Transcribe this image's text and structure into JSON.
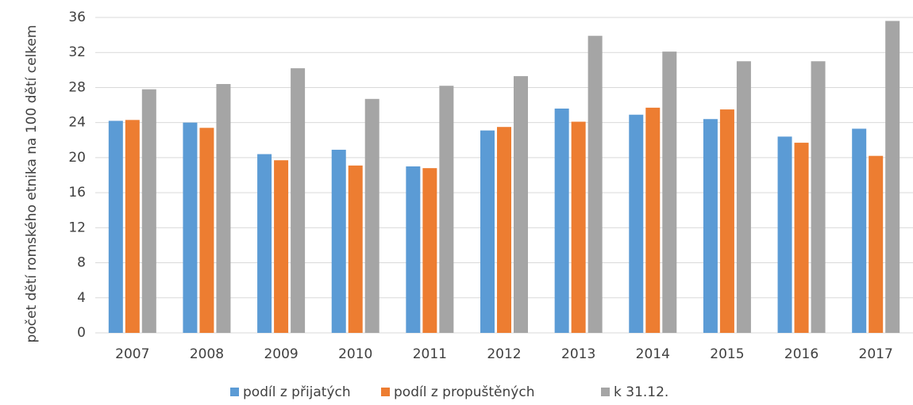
{
  "chart_data": {
    "type": "bar",
    "y_label": "počet dětí romského etnika na 100 dětí celkem",
    "categories": [
      "2007",
      "2008",
      "2009",
      "2010",
      "2011",
      "2012",
      "2013",
      "2014",
      "2015",
      "2016",
      "2017"
    ],
    "series": [
      {
        "name": "podíl z přijatých",
        "color": "#5b9bd5",
        "values": [
          24.2,
          24.0,
          20.4,
          20.9,
          19.0,
          23.1,
          25.6,
          24.9,
          24.4,
          22.4,
          23.3
        ]
      },
      {
        "name": "podíl z propuštěných",
        "color": "#ed7d31",
        "values": [
          24.3,
          23.4,
          19.7,
          19.1,
          18.8,
          23.5,
          24.1,
          25.7,
          25.5,
          21.7,
          20.2
        ]
      },
      {
        "name": "k 31.12.",
        "color": "#a5a5a5",
        "values": [
          27.8,
          28.4,
          30.2,
          26.7,
          28.2,
          29.3,
          33.9,
          32.1,
          31.0,
          31.0,
          35.6
        ]
      }
    ],
    "ylim": [
      0,
      36
    ],
    "yticks": [
      0,
      4,
      8,
      12,
      16,
      20,
      24,
      28,
      32,
      36
    ],
    "grid": true,
    "legend": "bottom"
  }
}
